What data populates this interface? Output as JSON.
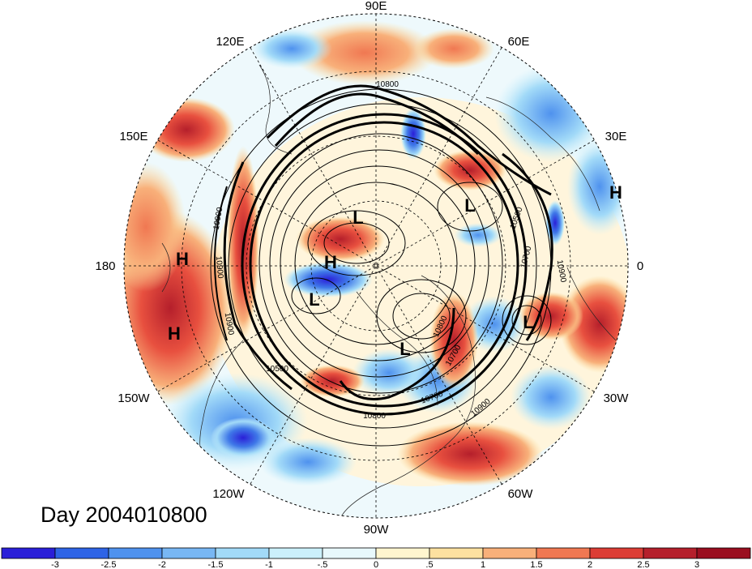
{
  "title": "Day 2004010800",
  "longitude_labels": {
    "top": "90E",
    "upper_left": "120E",
    "upper_right": "60E",
    "left_upper": "150E",
    "right_upper": "30E",
    "left": "180",
    "right": "0",
    "left_lower": "150W",
    "right_lower": "30W",
    "lower_left": "120W",
    "lower_right": "60W",
    "bottom": "90W"
  },
  "pressure_systems": [
    {
      "type": "H"
    },
    {
      "type": "H"
    },
    {
      "type": "H"
    },
    {
      "type": "H"
    },
    {
      "type": "L"
    },
    {
      "type": "L"
    },
    {
      "type": "L"
    },
    {
      "type": "L"
    },
    {
      "type": "L"
    }
  ],
  "contour_labels": [
    "10800",
    "10500",
    "10700",
    "10900",
    "10900",
    "10900",
    "10700",
    "10800",
    "10700",
    "10900",
    "10900",
    "10800",
    "10500"
  ],
  "colorbar": {
    "ticks": [
      "-3",
      "-2.5",
      "-2",
      "-1.5",
      "-1",
      "-.5",
      "0",
      ".5",
      "1",
      "1.5",
      "2",
      "2.5",
      "3"
    ],
    "colors": [
      "#2a1fd8",
      "#2e64e6",
      "#4f92ee",
      "#78b7f4",
      "#a2daf8",
      "#cbf0fb",
      "#e8f8fc",
      "#fff5cf",
      "#fde1a0",
      "#f8b07a",
      "#f07852",
      "#dc3d35",
      "#b51f2b",
      "#9a0e1f"
    ]
  },
  "colors": {
    "anomaly_negative": "#4f92ee",
    "anomaly_positive": "#f07852",
    "contour_line": "#000000"
  }
}
